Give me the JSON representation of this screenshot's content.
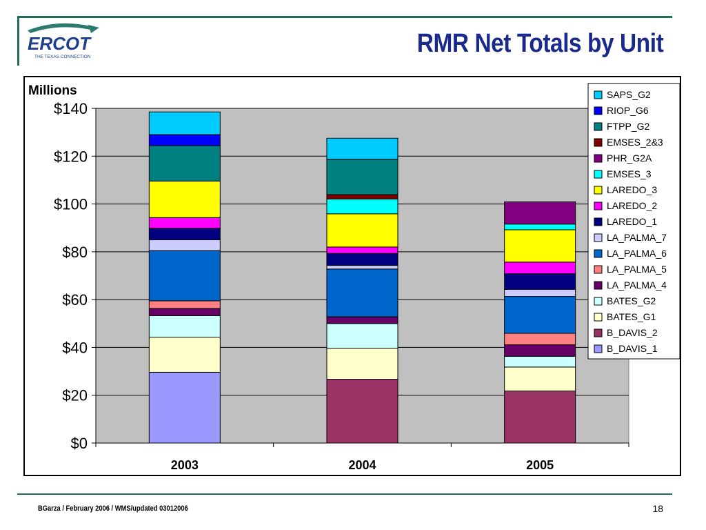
{
  "header": {
    "logo_text": "ERCOT",
    "logo_subtext": "THE TEXAS CONNECTION",
    "title": "RMR Net Totals by Unit"
  },
  "footer": {
    "text": "BGarza / February 2006 / WMS/updated 03012006",
    "page_number": "18"
  },
  "chart_data": {
    "type": "bar",
    "stacked": true,
    "ylabel": "Millions",
    "ylim": [
      0,
      140
    ],
    "yticks": [
      "$0",
      "$20",
      "$40",
      "$60",
      "$80",
      "$100",
      "$120",
      "$140"
    ],
    "categories": [
      "2003",
      "2004",
      "2005"
    ],
    "plot_background": "#c0c0c0",
    "legend_position": "top-right",
    "series": [
      {
        "name": "B_DAVIS_1",
        "color": "#9999ff",
        "values": [
          29.6,
          0,
          0
        ]
      },
      {
        "name": "B_DAVIS_2",
        "color": "#993366",
        "values": [
          0,
          26.7,
          21.8
        ]
      },
      {
        "name": "BATES_G1",
        "color": "#ffffcc",
        "values": [
          14.7,
          13.0,
          10.0
        ]
      },
      {
        "name": "BATES_G2",
        "color": "#ccffff",
        "values": [
          9.0,
          10.3,
          4.5
        ]
      },
      {
        "name": "LA_PALMA_4",
        "color": "#660066",
        "values": [
          3.0,
          2.8,
          4.8
        ]
      },
      {
        "name": "LA_PALMA_5",
        "color": "#ff8080",
        "values": [
          3.2,
          0,
          4.8
        ]
      },
      {
        "name": "LA_PALMA_6",
        "color": "#0066cc",
        "values": [
          21.0,
          20.0,
          15.4
        ]
      },
      {
        "name": "LA_PALMA_7",
        "color": "#ccccff",
        "values": [
          4.5,
          1.5,
          3.0
        ]
      },
      {
        "name": "LAREDO_1",
        "color": "#000080",
        "values": [
          4.8,
          5.0,
          6.5
        ]
      },
      {
        "name": "LAREDO_2",
        "color": "#ff00ff",
        "values": [
          4.5,
          2.7,
          4.9
        ]
      },
      {
        "name": "LAREDO_3",
        "color": "#ffff00",
        "values": [
          15.3,
          13.9,
          13.5
        ]
      },
      {
        "name": "EMSES_3",
        "color": "#00ffff",
        "values": [
          0,
          6.2,
          2.4
        ]
      },
      {
        "name": "PHR_G2A",
        "color": "#800080",
        "values": [
          0,
          0,
          9.3
        ]
      },
      {
        "name": "EMSES_2&3",
        "color": "#800000",
        "values": [
          0,
          1.8,
          0
        ]
      },
      {
        "name": "FTPP_G2",
        "color": "#008080",
        "values": [
          14.8,
          14.8,
          0
        ]
      },
      {
        "name": "RIOP_G6",
        "color": "#0000ff",
        "values": [
          4.6,
          0,
          0
        ]
      },
      {
        "name": "SAPS_G2",
        "color": "#00ccff",
        "values": [
          9.5,
          8.8,
          0
        ]
      }
    ]
  }
}
